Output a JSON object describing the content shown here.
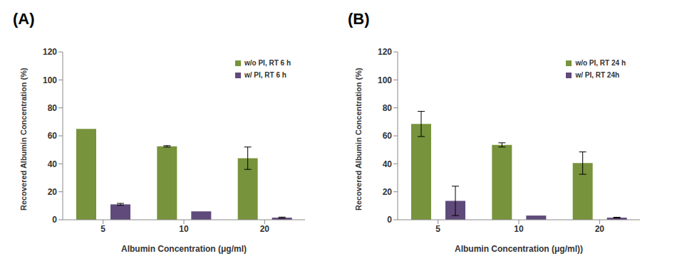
{
  "chart_data": [
    {
      "type": "bar",
      "title": "(A)",
      "x_label": "Albumin Concentration (μg/ml)",
      "y_label": "Recovered Albumin Concentration (%)",
      "categories": [
        "5",
        "10",
        "20"
      ],
      "series": [
        {
          "name": "w/o PI, RT 6 h",
          "color": "#77933c",
          "values": [
            65,
            52.5,
            44
          ],
          "errors": [
            0,
            0.5,
            8
          ]
        },
        {
          "name": "w/ PI, RT 6 h",
          "color": "#604a7b",
          "values": [
            11,
            6,
            1.5
          ],
          "errors": [
            0.7,
            0,
            0.4
          ]
        }
      ],
      "ylim": [
        0,
        120
      ],
      "yticks": [
        0,
        20,
        40,
        60,
        80,
        100,
        120
      ],
      "grid": false,
      "legend": "upper right"
    },
    {
      "type": "bar",
      "title": "(B)",
      "x_label": "Albumin Concentration (μg/ml))",
      "y_label": "Recovered Albumin Concentration (%)",
      "categories": [
        "5",
        "10",
        "20"
      ],
      "series": [
        {
          "name": "w/o PI, RT 24 h",
          "color": "#77933c",
          "values": [
            68.5,
            53.5,
            40.5
          ],
          "errors": [
            9,
            1.5,
            8
          ]
        },
        {
          "name": "w/ PI, RT 24h",
          "color": "#604a7b",
          "values": [
            13.5,
            3,
            1.5
          ],
          "errors": [
            10.5,
            0,
            0.3
          ]
        }
      ],
      "ylim": [
        0,
        120
      ],
      "yticks": [
        0,
        20,
        40,
        60,
        80,
        100,
        120
      ],
      "grid": false,
      "legend": "upper right"
    }
  ]
}
